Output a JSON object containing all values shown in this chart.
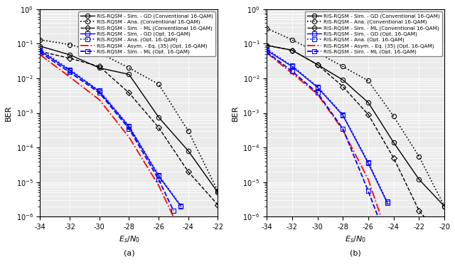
{
  "subplot_a": {
    "title": "(a)",
    "xlabel": "$E_s/N_0$",
    "ylabel": "BER",
    "xlim": [
      -34,
      -22
    ],
    "ylim": [
      1e-06,
      1.0
    ],
    "xticks": [
      -34,
      -32,
      -30,
      -28,
      -26,
      -24,
      -22
    ],
    "series": [
      {
        "key": "conv_GD_sim",
        "label": "RIS-RQSM - Sim. - GD (Conventional 16-QAM)",
        "color": "#000000",
        "linestyle": "-",
        "marker": "o",
        "markersize": 4.5,
        "linewidth": 1.0,
        "x": [
          -34,
          -32,
          -30,
          -28,
          -26,
          -24,
          -22
        ],
        "y": [
          0.085,
          0.048,
          0.02,
          0.013,
          0.00075,
          8e-05,
          5e-06
        ]
      },
      {
        "key": "conv_Ana",
        "label": "RIS-RQSM - Ana. (Conventional 16-QAM)",
        "color": "#000000",
        "linestyle": ":",
        "marker": "o",
        "markersize": 4.5,
        "linewidth": 1.2,
        "x": [
          -34,
          -32,
          -30,
          -28,
          -26,
          -24,
          -22
        ],
        "y": [
          0.13,
          0.095,
          0.055,
          0.02,
          0.0068,
          0.0003,
          5.5e-06
        ]
      },
      {
        "key": "conv_ML_sim",
        "label": "RIS-RQSM - Sim. - ML (Conventional 16-QAM)",
        "color": "#000000",
        "linestyle": "--",
        "marker": "D",
        "markersize": 4.5,
        "linewidth": 1.0,
        "x": [
          -34,
          -32,
          -30,
          -28,
          -26,
          -24,
          -22
        ],
        "y": [
          0.06,
          0.038,
          0.022,
          0.0038,
          0.00038,
          2e-05,
          2.2e-06
        ]
      },
      {
        "key": "opt_GD_sim",
        "label": "RIS-RQSM - Sim. - GD (Opt. 16-QAM)",
        "color": "#0000FF",
        "linestyle": "-",
        "marker": "s",
        "markersize": 4.5,
        "linewidth": 1.0,
        "x": [
          -34,
          -32,
          -30,
          -28,
          -26,
          -24.5
        ],
        "y": [
          0.062,
          0.017,
          0.0042,
          0.0004,
          1.5e-05,
          2e-06
        ]
      },
      {
        "key": "opt_Ana",
        "label": "RIS-RQSM - Ana. (Opt. 16-QAM)",
        "color": "#0000FF",
        "linestyle": ":",
        "marker": "s",
        "markersize": 4.5,
        "linewidth": 1.2,
        "x": [
          -34,
          -32,
          -30,
          -28,
          -26,
          -24.5
        ],
        "y": [
          0.068,
          0.018,
          0.0044,
          0.00042,
          1.6e-05,
          2.1e-06
        ]
      },
      {
        "key": "opt_Asym",
        "label": "RIS-RQSM - Asym. - Eq. (35) (Opt. 16-QAM)",
        "color": "#FF0000",
        "linestyle": "-.",
        "marker": null,
        "markersize": 0,
        "linewidth": 1.3,
        "x": [
          -34,
          -32,
          -30,
          -28,
          -26,
          -25.0
        ],
        "y": [
          0.048,
          0.011,
          0.0024,
          0.0002,
          8e-06,
          1e-06
        ]
      },
      {
        "key": "opt_ML_sim",
        "label": "RIS-RQSM - Sim. - ML (Opt. 16-QAM)",
        "color": "#0000FF",
        "linestyle": "--",
        "marker": "s",
        "markersize": 4.5,
        "linewidth": 1.3,
        "x": [
          -34,
          -32,
          -30,
          -28,
          -26,
          -25.0
        ],
        "y": [
          0.056,
          0.015,
          0.0038,
          0.00035,
          1.2e-05,
          1.5e-06
        ]
      }
    ]
  },
  "subplot_b": {
    "title": "(b)",
    "xlabel": "$E_s/N_0$",
    "ylabel": "BER",
    "xlim": [
      -34,
      -20
    ],
    "ylim": [
      1e-06,
      1.0
    ],
    "xticks": [
      -34,
      -32,
      -30,
      -28,
      -26,
      -24,
      -22,
      -20
    ],
    "series": [
      {
        "key": "conv_GD_sim",
        "label": "RIS-RQSM - Sim. - GD (Conventional 16-QAM)",
        "color": "#000000",
        "linestyle": "-",
        "marker": "o",
        "markersize": 4.5,
        "linewidth": 1.0,
        "x": [
          -34,
          -32,
          -30,
          -28,
          -26,
          -24,
          -22,
          -20
        ],
        "y": [
          0.09,
          0.065,
          0.025,
          0.009,
          0.002,
          0.00014,
          1.2e-05,
          2e-06
        ]
      },
      {
        "key": "conv_Ana",
        "label": "RIS-RQSM - Ana. (Conventional 16-QAM)",
        "color": "#000000",
        "linestyle": ":",
        "marker": "o",
        "markersize": 4.5,
        "linewidth": 1.2,
        "x": [
          -34,
          -32,
          -30,
          -28,
          -26,
          -24,
          -22,
          -20
        ],
        "y": [
          0.28,
          0.13,
          0.055,
          0.022,
          0.0085,
          0.0008,
          5.5e-05,
          2e-06
        ]
      },
      {
        "key": "conv_ML_sim",
        "label": "RIS-RQSM - Sim. - ML (Conventional 16-QAM)",
        "color": "#000000",
        "linestyle": "--",
        "marker": "D",
        "markersize": 4.5,
        "linewidth": 1.0,
        "x": [
          -34,
          -32,
          -30,
          -28,
          -26,
          -24,
          -22,
          -20
        ],
        "y": [
          0.09,
          0.065,
          0.025,
          0.0058,
          0.0009,
          5e-05,
          1.5e-06,
          2e-07
        ]
      },
      {
        "key": "opt_GD_sim",
        "label": "RIS-RQSM - Sim. - GD (Opt. 16-QAM)",
        "color": "#0000FF",
        "linestyle": "-",
        "marker": "s",
        "markersize": 4.5,
        "linewidth": 1.0,
        "x": [
          -34,
          -32,
          -30,
          -28,
          -26,
          -24.5
        ],
        "y": [
          0.065,
          0.022,
          0.0055,
          0.00085,
          3.5e-05,
          2.5e-06
        ]
      },
      {
        "key": "opt_Ana",
        "label": "RIS-RQSM - Ana. (Opt. 16-QAM)",
        "color": "#0000FF",
        "linestyle": ":",
        "marker": "s",
        "markersize": 4.5,
        "linewidth": 1.2,
        "x": [
          -34,
          -32,
          -30,
          -28,
          -26,
          -24.5
        ],
        "y": [
          0.07,
          0.023,
          0.0058,
          0.0009,
          3.8e-05,
          2.7e-06
        ]
      },
      {
        "key": "opt_Asym",
        "label": "RIS-RQSM - Asym. - Eq. (35) (Opt. 16-QAM)",
        "color": "#FF0000",
        "linestyle": "-.",
        "marker": null,
        "markersize": 0,
        "linewidth": 1.3,
        "x": [
          -34,
          -32,
          -30,
          -28,
          -26,
          -25.0
        ],
        "y": [
          0.055,
          0.014,
          0.0035,
          0.00032,
          1.2e-05,
          1e-06
        ]
      },
      {
        "key": "opt_ML_sim",
        "label": "RIS-RQSM - Sim. - ML (Opt. 16-QAM)",
        "color": "#0000FF",
        "linestyle": "--",
        "marker": "s",
        "markersize": 4.5,
        "linewidth": 1.3,
        "x": [
          -34,
          -32,
          -30,
          -28,
          -26,
          -24.5
        ],
        "y": [
          0.058,
          0.016,
          0.0038,
          0.00035,
          5.5e-06,
          2e-07
        ]
      }
    ]
  },
  "legend_fontsize": 5.2,
  "tick_fontsize": 7,
  "label_fontsize": 8,
  "background_color": "#ebebeb",
  "grid_color": "#ffffff",
  "grid_linewidth": 0.6
}
